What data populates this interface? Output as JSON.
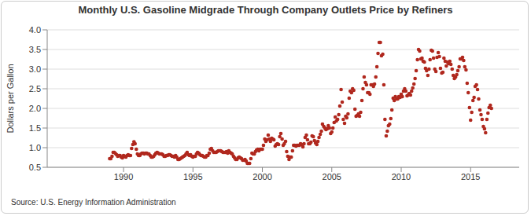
{
  "chart_data": {
    "type": "scatter",
    "title": "Monthly U.S. Gasoline Midgrade Through Company Outlets Price by Refiners",
    "y_label": "Dollars per Gallon",
    "annotations": [
      "Source: U.S. Energy Information Administration"
    ],
    "color": "#b0281e",
    "marker": "circle",
    "grid": true,
    "xlim": [
      1984.5,
      2018.5
    ],
    "xticks": [
      1990,
      1995,
      2000,
      2005,
      2010,
      2015
    ],
    "ylim": [
      0.5,
      4.0
    ],
    "yticks": [
      0.5,
      {
        "value": 1.0,
        "label": "1.0"
      },
      1.5,
      {
        "value": 2.0,
        "label": "2.0"
      },
      2.5,
      {
        "value": 3.0,
        "label": "3.0"
      },
      3.5,
      {
        "value": 4.0,
        "label": "4.0"
      }
    ],
    "x": [
      1989.0,
      1989.08,
      1989.17,
      1989.25,
      1989.33,
      1989.42,
      1989.5,
      1989.58,
      1989.67,
      1989.75,
      1989.83,
      1989.92,
      1990.0,
      1990.08,
      1990.17,
      1990.25,
      1990.33,
      1990.42,
      1990.5,
      1990.58,
      1990.67,
      1990.75,
      1990.83,
      1990.92,
      1991.0,
      1991.08,
      1991.17,
      1991.25,
      1991.33,
      1991.42,
      1991.5,
      1991.58,
      1991.67,
      1991.75,
      1991.83,
      1991.92,
      1992.0,
      1992.08,
      1992.17,
      1992.25,
      1992.33,
      1992.42,
      1992.5,
      1992.58,
      1992.67,
      1992.75,
      1992.83,
      1992.92,
      1993.0,
      1993.08,
      1993.17,
      1993.25,
      1993.33,
      1993.42,
      1993.5,
      1993.58,
      1993.67,
      1993.75,
      1993.83,
      1993.92,
      1994.0,
      1994.08,
      1994.17,
      1994.25,
      1994.33,
      1994.42,
      1994.5,
      1994.58,
      1994.67,
      1994.75,
      1994.83,
      1994.92,
      1995.0,
      1995.08,
      1995.17,
      1995.25,
      1995.33,
      1995.42,
      1995.5,
      1995.58,
      1995.67,
      1995.75,
      1995.83,
      1995.92,
      1996.0,
      1996.08,
      1996.17,
      1996.25,
      1996.33,
      1996.42,
      1996.5,
      1996.58,
      1996.67,
      1996.75,
      1996.83,
      1996.92,
      1997.0,
      1997.08,
      1997.17,
      1997.25,
      1997.33,
      1997.42,
      1997.5,
      1997.58,
      1997.67,
      1997.75,
      1997.83,
      1997.92,
      1998.0,
      1998.08,
      1998.17,
      1998.25,
      1998.33,
      1998.42,
      1998.5,
      1998.58,
      1998.67,
      1998.75,
      1998.83,
      1998.92,
      1999.0,
      1999.08,
      1999.17,
      1999.25,
      1999.33,
      1999.42,
      1999.5,
      1999.58,
      1999.67,
      1999.75,
      1999.83,
      1999.92,
      2000.0,
      2000.08,
      2000.17,
      2000.25,
      2000.33,
      2000.42,
      2000.5,
      2000.58,
      2000.67,
      2000.75,
      2000.83,
      2000.92,
      2001.0,
      2001.08,
      2001.17,
      2001.25,
      2001.33,
      2001.42,
      2001.5,
      2001.58,
      2001.67,
      2001.75,
      2001.83,
      2001.92,
      2002.0,
      2002.08,
      2002.17,
      2002.25,
      2002.33,
      2002.42,
      2002.5,
      2002.58,
      2002.67,
      2002.75,
      2002.83,
      2002.92,
      2003.0,
      2003.08,
      2003.17,
      2003.25,
      2003.33,
      2003.42,
      2003.5,
      2003.58,
      2003.67,
      2003.75,
      2003.83,
      2003.92,
      2004.0,
      2004.08,
      2004.17,
      2004.25,
      2004.33,
      2004.42,
      2004.5,
      2004.58,
      2004.67,
      2004.75,
      2004.83,
      2004.92,
      2005.0,
      2005.08,
      2005.17,
      2005.25,
      2005.33,
      2005.42,
      2005.5,
      2005.58,
      2005.67,
      2005.75,
      2005.83,
      2005.92,
      2006.0,
      2006.08,
      2006.17,
      2006.25,
      2006.33,
      2006.42,
      2006.5,
      2006.58,
      2006.67,
      2006.75,
      2006.83,
      2006.92,
      2007.0,
      2007.08,
      2007.17,
      2007.25,
      2007.33,
      2007.42,
      2007.5,
      2007.58,
      2007.67,
      2007.75,
      2007.83,
      2007.92,
      2008.0,
      2008.08,
      2008.17,
      2008.25,
      2008.33,
      2008.42,
      2008.5,
      2008.58,
      2008.67,
      2008.75,
      2008.83,
      2008.92,
      2009.0,
      2009.08,
      2009.17,
      2009.25,
      2009.33,
      2009.42,
      2009.5,
      2009.58,
      2009.67,
      2009.75,
      2009.83,
      2009.92,
      2010.0,
      2010.08,
      2010.17,
      2010.25,
      2010.33,
      2010.42,
      2010.5,
      2010.58,
      2010.67,
      2010.75,
      2010.83,
      2010.92,
      2011.0,
      2011.08,
      2011.17,
      2011.25,
      2011.33,
      2011.42,
      2011.5,
      2011.58,
      2011.67,
      2011.75,
      2011.83,
      2011.92,
      2012.0,
      2012.08,
      2012.17,
      2012.25,
      2012.33,
      2012.42,
      2012.5,
      2012.58,
      2012.67,
      2012.75,
      2012.83,
      2012.92,
      2013.0,
      2013.08,
      2013.17,
      2013.25,
      2013.33,
      2013.42,
      2013.5,
      2013.58,
      2013.67,
      2013.75,
      2013.83,
      2013.92,
      2014.0,
      2014.08,
      2014.17,
      2014.25,
      2014.33,
      2014.42,
      2014.5,
      2014.58,
      2014.67,
      2014.75,
      2014.83,
      2014.92,
      2015.0,
      2015.08,
      2015.17,
      2015.25,
      2015.33,
      2015.42,
      2015.5,
      2015.58,
      2015.67,
      2015.75,
      2015.83,
      2015.92,
      2016.0,
      2016.08,
      2016.17,
      2016.25,
      2016.33,
      2016.42,
      2016.5
    ],
    "values": [
      0.72,
      0.72,
      0.78,
      0.88,
      0.88,
      0.85,
      0.82,
      0.78,
      0.8,
      0.8,
      0.76,
      0.74,
      0.8,
      0.78,
      0.76,
      0.8,
      0.82,
      0.8,
      0.8,
      0.98,
      1.08,
      1.15,
      1.1,
      0.96,
      0.84,
      0.8,
      0.8,
      0.84,
      0.86,
      0.86,
      0.84,
      0.86,
      0.86,
      0.84,
      0.84,
      0.8,
      0.76,
      0.76,
      0.78,
      0.82,
      0.86,
      0.88,
      0.86,
      0.84,
      0.84,
      0.84,
      0.82,
      0.78,
      0.78,
      0.8,
      0.8,
      0.82,
      0.82,
      0.8,
      0.78,
      0.78,
      0.76,
      0.8,
      0.76,
      0.7,
      0.7,
      0.72,
      0.74,
      0.76,
      0.78,
      0.8,
      0.84,
      0.88,
      0.82,
      0.8,
      0.82,
      0.78,
      0.76,
      0.78,
      0.78,
      0.84,
      0.88,
      0.86,
      0.82,
      0.8,
      0.8,
      0.78,
      0.76,
      0.76,
      0.8,
      0.8,
      0.86,
      0.96,
      0.98,
      0.92,
      0.88,
      0.88,
      0.88,
      0.9,
      0.92,
      0.92,
      0.92,
      0.9,
      0.88,
      0.88,
      0.88,
      0.9,
      0.86,
      0.92,
      0.88,
      0.86,
      0.84,
      0.78,
      0.74,
      0.7,
      0.7,
      0.74,
      0.76,
      0.74,
      0.72,
      0.68,
      0.68,
      0.7,
      0.66,
      0.6,
      0.6,
      0.6,
      0.72,
      0.86,
      0.84,
      0.84,
      0.9,
      0.94,
      0.96,
      0.92,
      0.96,
      0.96,
      0.96,
      1.06,
      1.22,
      1.16,
      1.2,
      1.32,
      1.22,
      1.16,
      1.24,
      1.22,
      1.2,
      1.04,
      1.08,
      1.1,
      1.08,
      1.28,
      1.36,
      1.22,
      1.06,
      1.1,
      1.16,
      0.9,
      0.78,
      0.7,
      0.76,
      0.76,
      0.92,
      1.06,
      1.06,
      1.04,
      1.06,
      1.06,
      1.06,
      1.1,
      1.08,
      1.02,
      1.1,
      1.26,
      1.32,
      1.2,
      1.1,
      1.1,
      1.14,
      1.3,
      1.28,
      1.18,
      1.12,
      1.08,
      1.16,
      1.26,
      1.34,
      1.42,
      1.6,
      1.54,
      1.5,
      1.46,
      1.48,
      1.56,
      1.5,
      1.36,
      1.4,
      1.5,
      1.64,
      1.78,
      1.68,
      1.72,
      1.84,
      2.06,
      2.48,
      2.16,
      1.72,
      1.62,
      1.8,
      1.76,
      1.86,
      2.26,
      2.44,
      2.4,
      2.5,
      2.46,
      1.98,
      1.8,
      1.82,
      1.86,
      1.8,
      1.9,
      2.2,
      2.5,
      2.8,
      2.66,
      2.6,
      2.4,
      2.4,
      2.36,
      2.6,
      2.6,
      2.56,
      2.62,
      2.8,
      3.06,
      3.4,
      3.68,
      3.68,
      3.34,
      3.38,
      2.6,
      1.72,
      1.3,
      1.42,
      1.56,
      1.6,
      1.74,
      1.96,
      2.26,
      2.2,
      2.3,
      2.24,
      2.24,
      2.3,
      2.28,
      2.36,
      2.3,
      2.44,
      2.5,
      2.44,
      2.32,
      2.34,
      2.38,
      2.34,
      2.44,
      2.52,
      2.62,
      2.76,
      2.96,
      3.24,
      3.5,
      3.46,
      3.26,
      3.28,
      3.2,
      3.18,
      3.02,
      2.96,
      2.84,
      3.0,
      3.24,
      3.48,
      3.46,
      3.28,
      3.0,
      2.94,
      3.3,
      3.42,
      3.32,
      3.02,
      2.9,
      2.92,
      3.28,
      3.2,
      3.08,
      3.18,
      3.14,
      3.2,
      3.12,
      3.0,
      2.84,
      2.76,
      2.8,
      2.86,
      2.96,
      3.06,
      3.26,
      3.26,
      3.3,
      3.22,
      3.06,
      2.98,
      2.64,
      2.4,
      2.02,
      1.7,
      1.9,
      2.2,
      2.28,
      2.56,
      2.6,
      2.48,
      2.24,
      1.96,
      1.84,
      1.72,
      1.54,
      1.48,
      1.38,
      1.72,
      1.88,
      2.02,
      2.08,
      2.0
    ]
  }
}
